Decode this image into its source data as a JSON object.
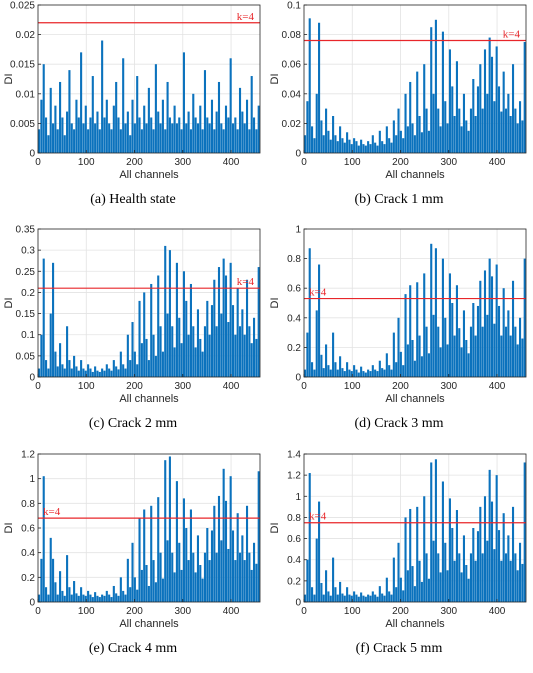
{
  "chart_data": [
    {
      "type": "bar",
      "caption": "(a) Health state",
      "xlabel": "All channels",
      "ylabel": "DI",
      "xlim": [
        0,
        460
      ],
      "ylim": [
        0,
        0.025
      ],
      "yticks": [
        "0",
        "0.005",
        "0.01",
        "0.015",
        "0.02",
        "0.025"
      ],
      "xticks": [
        "0",
        "100",
        "200",
        "300",
        "400"
      ],
      "threshold": 0.022,
      "threshold_label": "k=4",
      "threshold_label_pos": "right",
      "grid": true,
      "series": [
        {
          "values": [
            0.004,
            0.009,
            0.015,
            0.006,
            0.003,
            0.011,
            0.005,
            0.008,
            0.004,
            0.012,
            0.006,
            0.003,
            0.007,
            0.014,
            0.005,
            0.004,
            0.009,
            0.006,
            0.017,
            0.005,
            0.008,
            0.004,
            0.006,
            0.013,
            0.005,
            0.007,
            0.004,
            0.019,
            0.006,
            0.009,
            0.005,
            0.004,
            0.008,
            0.012,
            0.006,
            0.004,
            0.016,
            0.005,
            0.007,
            0.003,
            0.009,
            0.005,
            0.013,
            0.006,
            0.004,
            0.008,
            0.005,
            0.011,
            0.006,
            0.004,
            0.015,
            0.007,
            0.005,
            0.009,
            0.004,
            0.012,
            0.006,
            0.005,
            0.008,
            0.005,
            0.006,
            0.004,
            0.017,
            0.005,
            0.007,
            0.004,
            0.01,
            0.006,
            0.005,
            0.008,
            0.004,
            0.014,
            0.006,
            0.005,
            0.009,
            0.004,
            0.007,
            0.012,
            0.005,
            0.004,
            0.008,
            0.006,
            0.016,
            0.005,
            0.006,
            0.004,
            0.011,
            0.007,
            0.005,
            0.009,
            0.004,
            0.013,
            0.006,
            0.004,
            0.008
          ]
        }
      ]
    },
    {
      "type": "bar",
      "caption": "(b) Crack 1 mm",
      "xlabel": "All channels",
      "ylabel": "DI",
      "xlim": [
        0,
        460
      ],
      "ylim": [
        0,
        0.1
      ],
      "yticks": [
        "0",
        "0.02",
        "0.04",
        "0.06",
        "0.08",
        "0.1"
      ],
      "xticks": [
        "0",
        "100",
        "200",
        "300",
        "400"
      ],
      "threshold": 0.076,
      "threshold_label": "k=4",
      "threshold_label_pos": "right",
      "grid": true,
      "series": [
        {
          "values": [
            0.012,
            0.035,
            0.091,
            0.018,
            0.01,
            0.04,
            0.088,
            0.022,
            0.012,
            0.03,
            0.015,
            0.009,
            0.025,
            0.012,
            0.008,
            0.018,
            0.01,
            0.007,
            0.014,
            0.009,
            0.006,
            0.01,
            0.008,
            0.005,
            0.009,
            0.006,
            0.005,
            0.008,
            0.006,
            0.012,
            0.007,
            0.005,
            0.015,
            0.008,
            0.006,
            0.018,
            0.01,
            0.007,
            0.022,
            0.012,
            0.03,
            0.015,
            0.01,
            0.04,
            0.018,
            0.048,
            0.02,
            0.012,
            0.055,
            0.025,
            0.014,
            0.06,
            0.03,
            0.015,
            0.085,
            0.04,
            0.09,
            0.03,
            0.018,
            0.082,
            0.035,
            0.02,
            0.07,
            0.045,
            0.025,
            0.062,
            0.03,
            0.018,
            0.04,
            0.022,
            0.015,
            0.03,
            0.05,
            0.025,
            0.045,
            0.06,
            0.03,
            0.07,
            0.04,
            0.078,
            0.065,
            0.035,
            0.072,
            0.045,
            0.028,
            0.055,
            0.03,
            0.04,
            0.025,
            0.06,
            0.03,
            0.02,
            0.035,
            0.022,
            0.075
          ]
        }
      ]
    },
    {
      "type": "bar",
      "caption": "(c) Crack 2 mm",
      "xlabel": "All channels",
      "ylabel": "DI",
      "xlim": [
        0,
        460
      ],
      "ylim": [
        0,
        0.35
      ],
      "yticks": [
        "0",
        "0.05",
        "0.1",
        "0.15",
        "0.2",
        "0.25",
        "0.3",
        "0.35"
      ],
      "xticks": [
        "0",
        "100",
        "200",
        "300",
        "400"
      ],
      "threshold": 0.21,
      "threshold_label": "k=4",
      "threshold_label_pos": "right",
      "grid": true,
      "series": [
        {
          "values": [
            0.02,
            0.1,
            0.28,
            0.04,
            0.02,
            0.15,
            0.27,
            0.06,
            0.025,
            0.08,
            0.03,
            0.02,
            0.12,
            0.04,
            0.02,
            0.05,
            0.025,
            0.015,
            0.04,
            0.02,
            0.015,
            0.03,
            0.02,
            0.012,
            0.025,
            0.015,
            0.012,
            0.02,
            0.015,
            0.03,
            0.02,
            0.015,
            0.04,
            0.025,
            0.018,
            0.06,
            0.03,
            0.02,
            0.1,
            0.04,
            0.13,
            0.06,
            0.03,
            0.18,
            0.08,
            0.2,
            0.09,
            0.04,
            0.22,
            0.1,
            0.05,
            0.24,
            0.12,
            0.06,
            0.31,
            0.15,
            0.3,
            0.12,
            0.07,
            0.27,
            0.14,
            0.08,
            0.25,
            0.18,
            0.1,
            0.22,
            0.12,
            0.07,
            0.16,
            0.09,
            0.06,
            0.12,
            0.18,
            0.1,
            0.17,
            0.23,
            0.12,
            0.26,
            0.15,
            0.28,
            0.24,
            0.13,
            0.27,
            0.17,
            0.1,
            0.21,
            0.12,
            0.16,
            0.1,
            0.23,
            0.12,
            0.08,
            0.14,
            0.09,
            0.26
          ]
        }
      ]
    },
    {
      "type": "bar",
      "caption": "(d) Crack 3 mm",
      "xlabel": "All channels",
      "ylabel": "DI",
      "xlim": [
        0,
        460
      ],
      "ylim": [
        0,
        1
      ],
      "yticks": [
        "0",
        "0.2",
        "0.4",
        "0.6",
        "0.8",
        "1"
      ],
      "xticks": [
        "0",
        "100",
        "200",
        "300",
        "400"
      ],
      "threshold": 0.53,
      "threshold_label": "k=4",
      "threshold_label_pos": "left",
      "grid": true,
      "series": [
        {
          "values": [
            0.05,
            0.3,
            0.87,
            0.1,
            0.05,
            0.45,
            0.76,
            0.15,
            0.06,
            0.22,
            0.08,
            0.05,
            0.3,
            0.1,
            0.05,
            0.14,
            0.06,
            0.04,
            0.1,
            0.05,
            0.04,
            0.08,
            0.05,
            0.03,
            0.07,
            0.04,
            0.03,
            0.05,
            0.04,
            0.08,
            0.05,
            0.04,
            0.11,
            0.06,
            0.05,
            0.16,
            0.08,
            0.05,
            0.3,
            0.1,
            0.4,
            0.17,
            0.08,
            0.56,
            0.22,
            0.62,
            0.25,
            0.11,
            0.64,
            0.28,
            0.14,
            0.7,
            0.34,
            0.16,
            0.9,
            0.42,
            0.87,
            0.34,
            0.2,
            0.8,
            0.4,
            0.22,
            0.7,
            0.5,
            0.28,
            0.62,
            0.33,
            0.2,
            0.45,
            0.25,
            0.16,
            0.34,
            0.5,
            0.28,
            0.48,
            0.65,
            0.34,
            0.72,
            0.42,
            0.8,
            0.68,
            0.36,
            0.76,
            0.48,
            0.28,
            0.6,
            0.34,
            0.45,
            0.28,
            0.65,
            0.34,
            0.22,
            0.4,
            0.26,
            0.8
          ]
        }
      ]
    },
    {
      "type": "bar",
      "caption": "(e) Crack 4 mm",
      "xlabel": "All channels",
      "ylabel": "DI",
      "xlim": [
        0,
        460
      ],
      "ylim": [
        0,
        1.2
      ],
      "yticks": [
        "0",
        "0.2",
        "0.4",
        "0.6",
        "0.8",
        "1",
        "1.2"
      ],
      "xticks": [
        "0",
        "100",
        "200",
        "300",
        "400"
      ],
      "threshold": 0.68,
      "threshold_label": "k=4",
      "threshold_label_pos": "left",
      "grid": true,
      "series": [
        {
          "values": [
            0.06,
            0.35,
            1.02,
            0.12,
            0.06,
            0.52,
            0.35,
            0.16,
            0.06,
            0.25,
            0.09,
            0.05,
            0.38,
            0.12,
            0.06,
            0.17,
            0.07,
            0.05,
            0.12,
            0.06,
            0.05,
            0.09,
            0.06,
            0.04,
            0.08,
            0.05,
            0.04,
            0.06,
            0.05,
            0.09,
            0.06,
            0.04,
            0.13,
            0.07,
            0.05,
            0.2,
            0.09,
            0.06,
            0.35,
            0.12,
            0.48,
            0.2,
            0.1,
            0.68,
            0.26,
            0.75,
            0.3,
            0.13,
            0.78,
            0.34,
            0.16,
            0.85,
            0.4,
            0.19,
            1.15,
            0.5,
            1.18,
            0.4,
            0.24,
            0.98,
            0.48,
            0.26,
            0.84,
            0.6,
            0.34,
            0.75,
            0.4,
            0.24,
            0.54,
            0.3,
            0.19,
            0.4,
            0.6,
            0.34,
            0.58,
            0.78,
            0.4,
            0.86,
            0.5,
            1.08,
            0.82,
            0.43,
            1.02,
            0.58,
            0.34,
            0.72,
            0.4,
            0.54,
            0.34,
            0.78,
            0.4,
            0.26,
            0.48,
            0.31,
            1.06
          ]
        }
      ]
    },
    {
      "type": "bar",
      "caption": "(f) Crack 5 mm",
      "xlabel": "All channels",
      "ylabel": "DI",
      "xlim": [
        0,
        460
      ],
      "ylim": [
        0,
        1.4
      ],
      "yticks": [
        "0",
        "0.2",
        "0.4",
        "0.6",
        "0.8",
        "1",
        "1.2",
        "1.4"
      ],
      "xticks": [
        "0",
        "100",
        "200",
        "300",
        "400"
      ],
      "threshold": 0.75,
      "threshold_label": "k=4",
      "threshold_label_pos": "left",
      "grid": true,
      "series": [
        {
          "values": [
            0.07,
            0.4,
            1.22,
            0.14,
            0.07,
            0.6,
            0.95,
            0.18,
            0.07,
            0.3,
            0.1,
            0.06,
            0.42,
            0.14,
            0.07,
            0.19,
            0.08,
            0.06,
            0.14,
            0.07,
            0.06,
            0.1,
            0.07,
            0.05,
            0.09,
            0.06,
            0.05,
            0.07,
            0.06,
            0.1,
            0.07,
            0.05,
            0.15,
            0.08,
            0.06,
            0.23,
            0.1,
            0.07,
            0.42,
            0.14,
            0.56,
            0.23,
            0.11,
            0.8,
            0.3,
            0.88,
            0.34,
            0.15,
            0.9,
            0.39,
            0.19,
            1.0,
            0.46,
            0.22,
            1.32,
            0.58,
            1.35,
            0.46,
            0.28,
            1.14,
            0.56,
            0.3,
            0.98,
            0.7,
            0.39,
            0.87,
            0.46,
            0.28,
            0.63,
            0.35,
            0.22,
            0.46,
            0.7,
            0.39,
            0.67,
            0.9,
            0.46,
            1.0,
            0.58,
            1.25,
            0.95,
            0.5,
            1.2,
            0.68,
            0.39,
            0.84,
            0.46,
            0.63,
            0.39,
            0.9,
            0.46,
            0.3,
            0.56,
            0.36,
            1.32
          ]
        }
      ]
    }
  ]
}
